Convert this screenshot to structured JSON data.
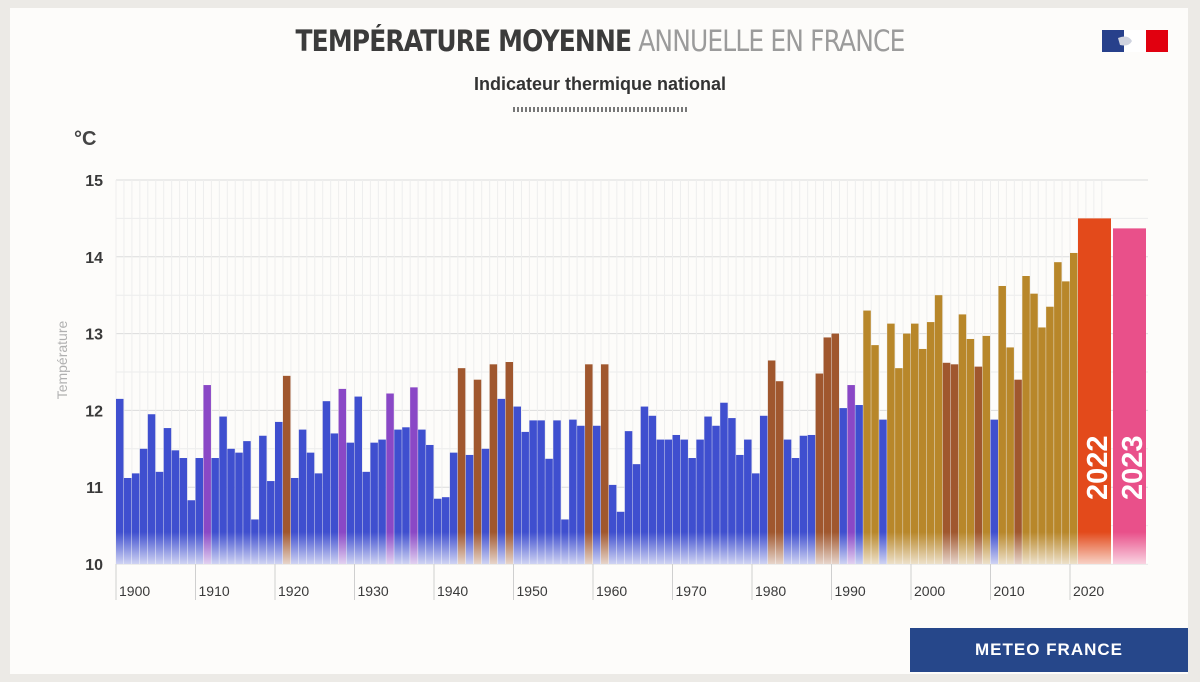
{
  "header": {
    "title_bold": "TEMPÉRATURE MOYENNE",
    "title_light": "ANNUELLE EN FRANCE",
    "subtitle": "Indicateur thermique national"
  },
  "footer": {
    "logo_text": "METEO FRANCE"
  },
  "colors": {
    "blue": "#3f4fcf",
    "purple": "#8a48c6",
    "brown": "#a0572e",
    "gold": "#b8872a",
    "red_2022": "#e34a1b",
    "pink_2023": "#e9508a"
  },
  "chart_data": {
    "type": "bar",
    "title": "TEMPÉRATURE MOYENNE ANNUELLE EN FRANCE",
    "subtitle": "Indicateur thermique national",
    "ylabel": "Température",
    "yunit": "°C",
    "ylim": [
      10,
      15
    ],
    "yticks": [
      "10",
      "11",
      "12",
      "13",
      "14",
      "15"
    ],
    "xticks": [
      "1900",
      "1910",
      "1920",
      "1930",
      "1940",
      "1950",
      "1960",
      "1970",
      "1980",
      "1990",
      "2000",
      "2010",
      "2020"
    ],
    "grid": true,
    "x": [
      1900,
      1901,
      1902,
      1903,
      1904,
      1905,
      1906,
      1907,
      1908,
      1909,
      1910,
      1911,
      1912,
      1913,
      1914,
      1915,
      1916,
      1917,
      1918,
      1919,
      1920,
      1921,
      1922,
      1923,
      1924,
      1925,
      1926,
      1927,
      1928,
      1929,
      1930,
      1931,
      1932,
      1933,
      1934,
      1935,
      1936,
      1937,
      1938,
      1939,
      1940,
      1941,
      1942,
      1943,
      1944,
      1945,
      1946,
      1947,
      1948,
      1949,
      1950,
      1951,
      1952,
      1953,
      1954,
      1955,
      1956,
      1957,
      1958,
      1959,
      1960,
      1961,
      1962,
      1963,
      1964,
      1965,
      1966,
      1967,
      1968,
      1969,
      1970,
      1971,
      1972,
      1973,
      1974,
      1975,
      1976,
      1977,
      1978,
      1979,
      1980,
      1981,
      1982,
      1983,
      1984,
      1985,
      1986,
      1987,
      1988,
      1989,
      1990,
      1991,
      1992,
      1993,
      1994,
      1995,
      1996,
      1997,
      1998,
      1999,
      2000,
      2001,
      2002,
      2003,
      2004,
      2005,
      2006,
      2007,
      2008,
      2009,
      2010,
      2011,
      2012,
      2013,
      2014,
      2015,
      2016,
      2017,
      2018,
      2019,
      2020,
      2021,
      2022,
      2023
    ],
    "values": [
      12.15,
      11.12,
      11.18,
      11.5,
      11.95,
      11.2,
      11.77,
      11.48,
      11.38,
      10.83,
      11.38,
      12.33,
      11.38,
      11.92,
      11.5,
      11.45,
      11.6,
      10.58,
      11.67,
      11.08,
      11.85,
      12.45,
      11.12,
      11.75,
      11.45,
      11.18,
      12.12,
      11.7,
      12.28,
      11.58,
      12.18,
      11.2,
      11.58,
      11.62,
      12.22,
      11.75,
      11.78,
      12.3,
      11.75,
      11.55,
      10.85,
      10.87,
      11.45,
      12.55,
      11.42,
      12.4,
      11.5,
      12.6,
      12.15,
      12.63,
      12.05,
      11.72,
      11.87,
      11.87,
      11.37,
      11.87,
      10.58,
      11.88,
      11.8,
      12.6,
      11.8,
      12.6,
      11.03,
      10.68,
      11.73,
      11.3,
      12.05,
      11.93,
      11.62,
      11.62,
      11.68,
      11.62,
      11.38,
      11.62,
      11.92,
      11.8,
      12.1,
      11.9,
      11.42,
      11.62,
      11.18,
      11.93,
      12.65,
      12.38,
      11.62,
      11.38,
      11.67,
      11.68,
      12.48,
      12.95,
      13.0,
      12.03,
      12.33,
      12.07,
      13.3,
      12.85,
      11.88,
      13.13,
      12.55,
      13.0,
      13.13,
      12.8,
      13.15,
      13.5,
      12.62,
      12.6,
      13.25,
      12.93,
      12.57,
      12.97,
      11.88,
      13.62,
      12.82,
      12.4,
      13.75,
      13.52,
      13.08,
      13.35,
      13.93,
      13.68,
      14.05,
      12.9,
      14.5,
      14.37
    ],
    "color_class": [
      "blue",
      "blue",
      "blue",
      "blue",
      "blue",
      "blue",
      "blue",
      "blue",
      "blue",
      "blue",
      "blue",
      "purple",
      "blue",
      "blue",
      "blue",
      "blue",
      "blue",
      "blue",
      "blue",
      "blue",
      "blue",
      "brown",
      "blue",
      "blue",
      "blue",
      "blue",
      "blue",
      "blue",
      "purple",
      "blue",
      "blue",
      "blue",
      "blue",
      "blue",
      "purple",
      "blue",
      "blue",
      "purple",
      "blue",
      "blue",
      "blue",
      "blue",
      "blue",
      "brown",
      "blue",
      "brown",
      "blue",
      "brown",
      "blue",
      "brown",
      "blue",
      "blue",
      "blue",
      "blue",
      "blue",
      "blue",
      "blue",
      "blue",
      "blue",
      "brown",
      "blue",
      "brown",
      "blue",
      "blue",
      "blue",
      "blue",
      "blue",
      "blue",
      "blue",
      "blue",
      "blue",
      "blue",
      "blue",
      "blue",
      "blue",
      "blue",
      "blue",
      "blue",
      "blue",
      "blue",
      "blue",
      "blue",
      "brown",
      "brown",
      "blue",
      "blue",
      "blue",
      "blue",
      "brown",
      "brown",
      "brown",
      "blue",
      "purple",
      "blue",
      "gold",
      "gold",
      "blue",
      "gold",
      "gold",
      "gold",
      "gold",
      "gold",
      "gold",
      "gold",
      "brown",
      "brown",
      "gold",
      "gold",
      "brown",
      "gold",
      "blue",
      "gold",
      "gold",
      "brown",
      "gold",
      "gold",
      "gold",
      "gold",
      "gold",
      "gold",
      "gold",
      "gold",
      "red_2022",
      "pink_2023"
    ],
    "annotations": [
      "2022",
      "2023"
    ]
  }
}
